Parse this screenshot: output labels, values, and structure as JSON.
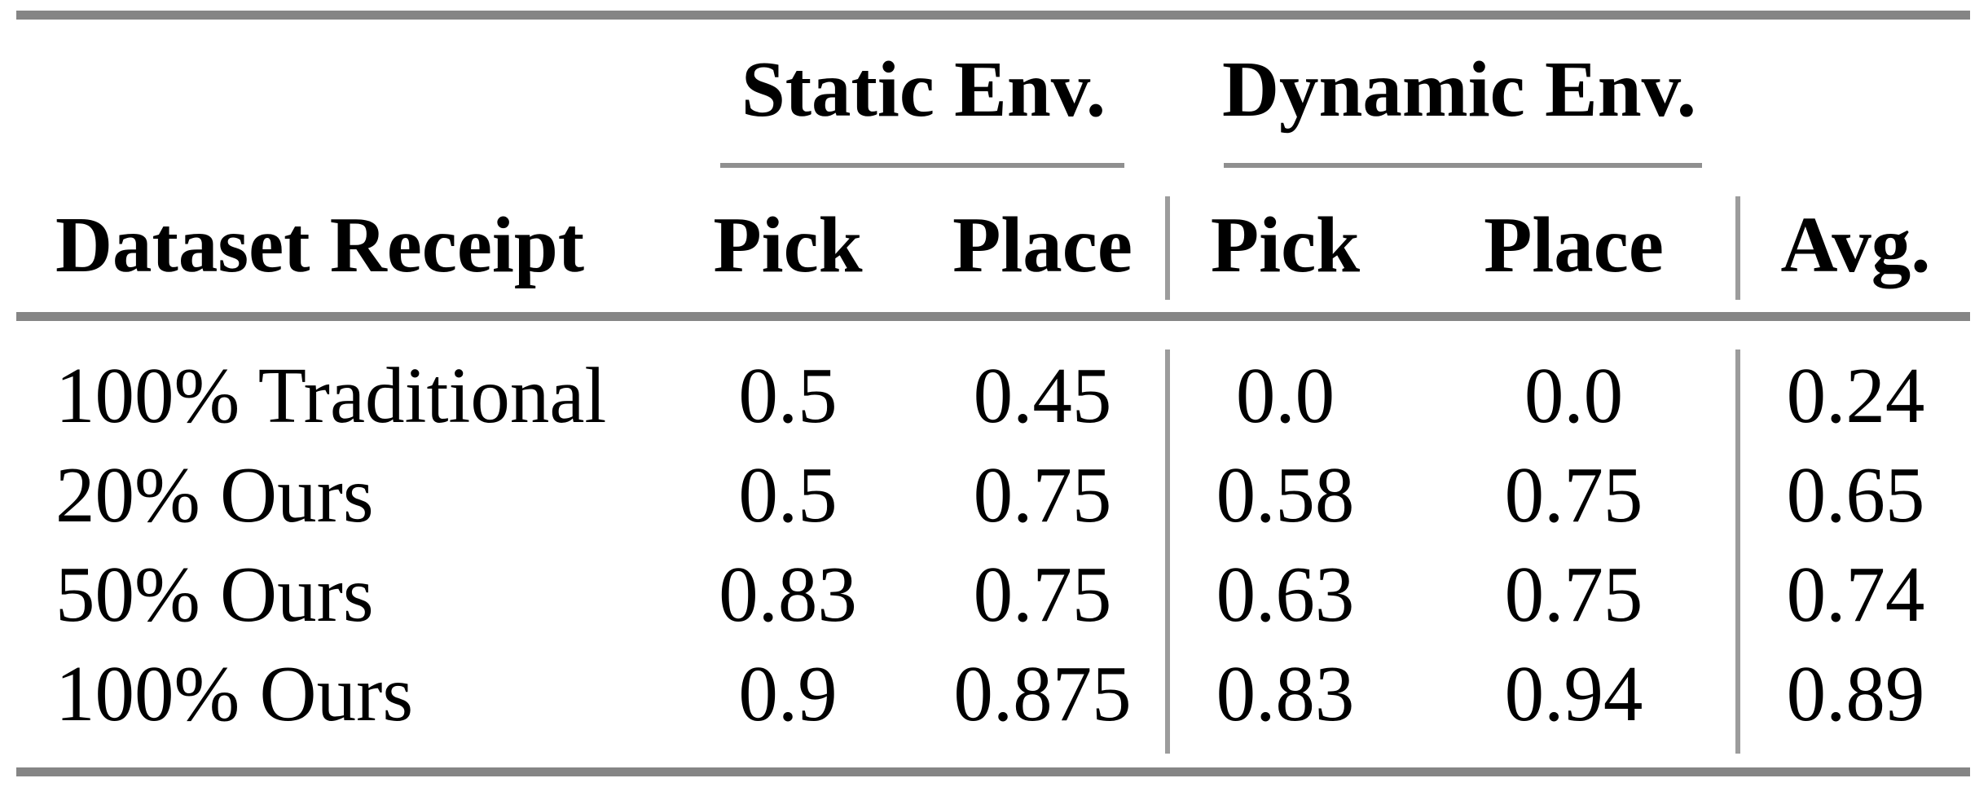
{
  "table": {
    "groups": [
      {
        "label": "Static Env."
      },
      {
        "label": "Dynamic Env."
      }
    ],
    "header": {
      "row_label": "Dataset Receipt",
      "static_pick": "Pick",
      "static_place": "Place",
      "dynamic_pick": "Pick",
      "dynamic_place": "Place",
      "avg": "Avg."
    },
    "rows": [
      {
        "label": "100% Traditional",
        "static_pick": "0.5",
        "static_place": "0.45",
        "dynamic_pick": "0.0",
        "dynamic_place": "0.0",
        "avg": "0.24"
      },
      {
        "label": "20% Ours",
        "static_pick": "0.5",
        "static_place": "0.75",
        "dynamic_pick": "0.58",
        "dynamic_place": "0.75",
        "avg": "0.65"
      },
      {
        "label": "50% Ours",
        "static_pick": "0.83",
        "static_place": "0.75",
        "dynamic_pick": "0.63",
        "dynamic_place": "0.75",
        "avg": "0.74"
      },
      {
        "label": "100% Ours",
        "static_pick": "0.9",
        "static_place": "0.875",
        "dynamic_pick": "0.83",
        "dynamic_place": "0.94",
        "avg": "0.89"
      }
    ]
  },
  "colors": {
    "rule_heavy": "#858585",
    "rule_thin": "#8f8f8f",
    "rule_vertical": "#9c9c9c",
    "text": "#000000",
    "background": "#ffffff"
  },
  "chart_data": {
    "type": "table",
    "column_groups": [
      {
        "label": "Static Env.",
        "columns": [
          "Pick",
          "Place"
        ]
      },
      {
        "label": "Dynamic Env.",
        "columns": [
          "Pick",
          "Place"
        ]
      }
    ],
    "columns": [
      "Dataset Receipt",
      "Static Env. Pick",
      "Static Env. Place",
      "Dynamic Env. Pick",
      "Dynamic Env. Place",
      "Avg."
    ],
    "rows": [
      [
        "100% Traditional",
        0.5,
        0.45,
        0.0,
        0.0,
        0.24
      ],
      [
        "20% Ours",
        0.5,
        0.75,
        0.58,
        0.75,
        0.65
      ],
      [
        "50% Ours",
        0.83,
        0.75,
        0.63,
        0.75,
        0.74
      ],
      [
        "100% Ours",
        0.9,
        0.875,
        0.83,
        0.94,
        0.89
      ]
    ]
  }
}
